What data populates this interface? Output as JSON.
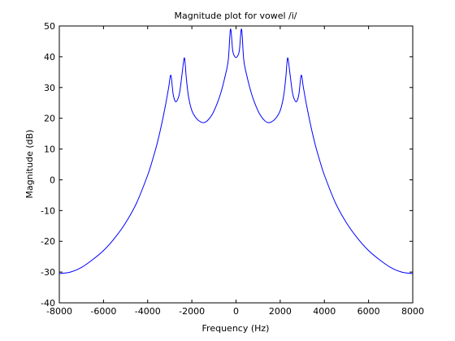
{
  "chart_data": {
    "type": "line",
    "title": "Magnitude plot for vowel /i/",
    "xlabel": "Frequency (Hz)",
    "ylabel": "Magnitude (dB)",
    "xlim": [
      -8000,
      8000
    ],
    "ylim": [
      -40,
      50
    ],
    "xticks": [
      -8000,
      -6000,
      -4000,
      -2000,
      0,
      2000,
      4000,
      6000,
      8000
    ],
    "yticks": [
      -40,
      -30,
      -20,
      -10,
      0,
      10,
      20,
      30,
      40,
      50
    ],
    "grid": false,
    "line_color": "#0000ff",
    "series": [
      {
        "x": [
          -8000,
          -7500,
          -7000,
          -6500,
          -6000,
          -5500,
          -5000,
          -4500,
          -4000,
          -3800,
          -3600,
          -3400,
          -3200,
          -3050,
          -2950,
          -2850,
          -2750,
          -2650,
          -2550,
          -2450,
          -2350,
          -2300,
          -2250,
          -2150,
          -2000,
          -1800,
          -1600,
          -1450,
          -1300,
          -1100,
          -900,
          -700,
          -500,
          -350,
          -250,
          -150,
          -50,
          50,
          150,
          250,
          350,
          500,
          700,
          900,
          1100,
          1300,
          1450,
          1600,
          1800,
          2000,
          2150,
          2250,
          2300,
          2350,
          2450,
          2550,
          2650,
          2750,
          2850,
          2950,
          3050,
          3200,
          3400,
          3600,
          3800,
          4000,
          4500,
          5000,
          5500,
          6000,
          6500,
          7000,
          7500,
          8000
        ],
        "y": [
          -30.5,
          -30,
          -28.5,
          -26,
          -23,
          -19,
          -14,
          -7.5,
          1.5,
          6,
          11,
          17,
          24,
          30,
          34,
          28,
          25.5,
          26,
          28.5,
          34,
          39.5,
          37.5,
          33,
          27,
          22.5,
          20,
          18.8,
          18.6,
          19.2,
          21,
          24,
          28,
          33.5,
          39,
          49,
          42,
          40,
          40,
          42,
          49,
          39,
          33.5,
          28,
          24,
          21,
          19.2,
          18.6,
          18.8,
          20,
          22.5,
          27,
          33,
          37.5,
          39.5,
          34,
          28.5,
          26,
          25.5,
          28,
          34,
          30,
          24,
          17,
          11,
          6,
          1.5,
          -7.5,
          -14,
          -19,
          -23,
          -26,
          -28.5,
          -30,
          -30.5
        ]
      }
    ]
  }
}
